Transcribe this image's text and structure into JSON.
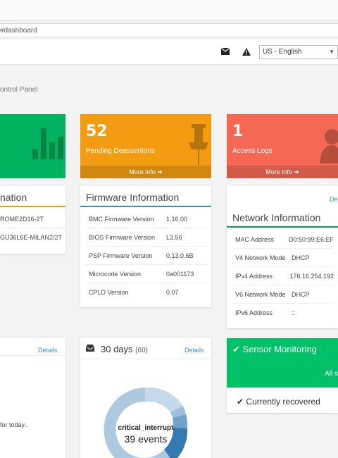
{
  "browser": {
    "url_fragment": "#dashboard"
  },
  "header": {
    "language": "US - English",
    "icons": [
      "envelope-icon",
      "warning-icon"
    ]
  },
  "breadcrumb": "ontrol Panel",
  "tiles": [
    {
      "number": "",
      "label": "",
      "link": "",
      "color": "#00b35f"
    },
    {
      "number": "52",
      "label": "Pending Deassertions",
      "link": "More info",
      "color": "#f39c12"
    },
    {
      "number": "1",
      "label": "Access Logs",
      "link": "More info",
      "color": "#f56954"
    }
  ],
  "board_info": {
    "title": "nation",
    "rows": [
      "ROME2D16-2T",
      "GU36L6E-MILAN2/2T"
    ]
  },
  "firmware": {
    "title": "Firmware Information",
    "rows": [
      {
        "key": "BMC Firmware Version",
        "value": "1.16.00"
      },
      {
        "key": "BIOS Firmware Version",
        "value": "L3.56"
      },
      {
        "key": "PSP Firmware Version",
        "value": "0.13.0.6B"
      },
      {
        "key": "Microcode Version",
        "value": "0a001173"
      },
      {
        "key": "CPLD Version",
        "value": "0.07"
      }
    ]
  },
  "network": {
    "top_link": "De",
    "title": "Network Information",
    "rows": [
      {
        "key": "MAC Address",
        "value": "D0:50:99:E6:EF"
      },
      {
        "key": "V4 Network Mode",
        "value": "DHCP"
      },
      {
        "key": "IPv4 Address",
        "value": "176.16.254.192"
      },
      {
        "key": "V6 Network Mode",
        "value": "DHCP"
      },
      {
        "key": "IPv6 Address",
        "value": "::"
      }
    ]
  },
  "today_panel": {
    "details": "Details",
    "text": "for today.."
  },
  "events_panel": {
    "title": "30 days",
    "count_badge": "60",
    "details": "Details",
    "center_label": "critical_interrupt",
    "center_value": "39 events"
  },
  "sensor": {
    "title": "Sensor Monitoring",
    "sub": "All s",
    "status": "Currently recovered"
  }
}
